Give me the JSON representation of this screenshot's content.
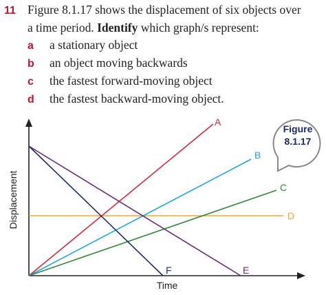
{
  "question": {
    "number": "11",
    "line1": "Figure 8.1.17 shows the displacement of six objects over",
    "line2_start": "a time period. ",
    "line2_bold": "Identify",
    "line2_end": " which graph/s represent:",
    "items": [
      {
        "letter": "a",
        "text": "a stationary object"
      },
      {
        "letter": "b",
        "text": "an object moving backwards"
      },
      {
        "letter": "c",
        "text": "the fastest forward-moving object"
      },
      {
        "letter": "d",
        "text": "the fastest backward-moving object."
      }
    ]
  },
  "figure": {
    "badge_line1": "Figure",
    "badge_line2": "8.1.17",
    "y_axis_label": "Displacement",
    "x_axis_label": "Time",
    "line_labels": [
      "A",
      "B",
      "C",
      "D",
      "E",
      "F"
    ]
  }
}
